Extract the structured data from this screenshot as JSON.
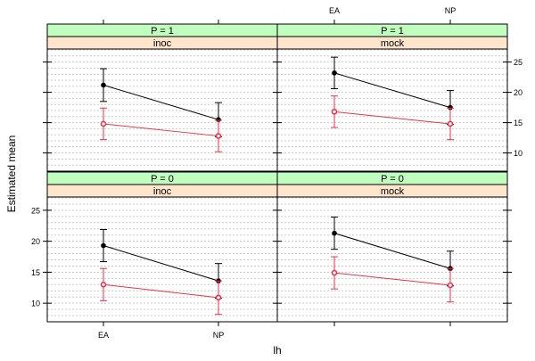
{
  "chart_data": {
    "type": "line",
    "xlabel": "lh",
    "ylabel": "Estimated mean",
    "categories": [
      "EA",
      "NP"
    ],
    "ylim": [
      7,
      27
    ],
    "yticks": [
      "10",
      "15",
      "20",
      "25"
    ],
    "grid": true,
    "colors": {
      "strip_outer": "#c0ffc0",
      "strip_inner": "#ffe5cc",
      "series_black": "#000000",
      "series_red": "#e8334a",
      "grid": "#c8c8c8"
    },
    "panels": [
      {
        "strip_outer": "P = 1",
        "strip_inner": "inoc",
        "series": [
          {
            "values": [
              21.2,
              15.5
            ],
            "lower": [
              18.5,
              12.7
            ],
            "upper": [
              23.9,
              18.3
            ],
            "color": "#000000",
            "marker": "dot"
          },
          {
            "values": [
              14.8,
              12.8
            ],
            "lower": [
              12.2,
              10.2
            ],
            "upper": [
              17.4,
              15.4
            ],
            "color": "#e8334a",
            "marker": "circle"
          }
        ]
      },
      {
        "strip_outer": "P = 1",
        "strip_inner": "mock",
        "series": [
          {
            "values": [
              23.2,
              17.5
            ],
            "lower": [
              20.6,
              14.7
            ],
            "upper": [
              25.8,
              20.3
            ],
            "color": "#000000",
            "marker": "dot"
          },
          {
            "values": [
              16.8,
              14.8
            ],
            "lower": [
              14.2,
              12.2
            ],
            "upper": [
              19.4,
              17.4
            ],
            "color": "#e8334a",
            "marker": "circle"
          }
        ]
      },
      {
        "strip_outer": "P = 0",
        "strip_inner": "inoc",
        "series": [
          {
            "values": [
              19.3,
              13.6
            ],
            "lower": [
              16.7,
              10.8
            ],
            "upper": [
              21.9,
              16.4
            ],
            "color": "#000000",
            "marker": "dot"
          },
          {
            "values": [
              13.0,
              10.9
            ],
            "lower": [
              10.4,
              8.2
            ],
            "upper": [
              15.6,
              13.6
            ],
            "color": "#e8334a",
            "marker": "circle"
          }
        ]
      },
      {
        "strip_outer": "P = 0",
        "strip_inner": "mock",
        "series": [
          {
            "values": [
              21.3,
              15.6
            ],
            "lower": [
              18.7,
              12.8
            ],
            "upper": [
              23.9,
              18.4
            ],
            "color": "#000000",
            "marker": "dot"
          },
          {
            "values": [
              14.9,
              12.9
            ],
            "lower": [
              12.3,
              10.2
            ],
            "upper": [
              17.5,
              15.6
            ],
            "color": "#e8334a",
            "marker": "circle"
          }
        ]
      }
    ]
  }
}
